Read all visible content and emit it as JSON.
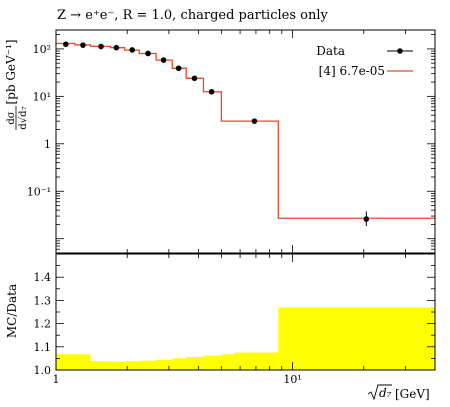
{
  "title": "Z → e⁺e⁻, R = 1.0, charged particles only",
  "chart_data": [
    {
      "type": "line",
      "panel": "main",
      "xscale": "log",
      "yscale": "log",
      "xlim": [
        1,
        40
      ],
      "ylim": [
        0.005,
        250
      ],
      "ylabel_num": "dσ",
      "ylabel_den": "d√d₇",
      "ylabel_unit": "[pb GeV⁻¹]",
      "y_ticks": [
        {
          "value": 100,
          "label": "10²"
        },
        {
          "value": 10,
          "label": "10¹"
        },
        {
          "value": 1,
          "label": "1"
        },
        {
          "value": 0.1,
          "label": "10⁻¹"
        }
      ],
      "legend": {
        "position": "top-right",
        "entries": [
          "Data",
          "[4] 6.7e-05"
        ]
      },
      "series": [
        {
          "name": "Data",
          "style": "points",
          "color": "#000000",
          "x": [
            1.1,
            1.3,
            1.55,
            1.8,
            2.1,
            2.45,
            2.85,
            3.3,
            3.85,
            4.55,
            6.9,
            20.5
          ],
          "y": [
            125,
            120,
            112,
            106,
            95,
            80,
            58,
            39,
            24,
            12.5,
            3.0,
            0.026
          ],
          "yerr_low": [
            0,
            0,
            0,
            0,
            0,
            0,
            0,
            0,
            0,
            0,
            0,
            0.0075
          ],
          "yerr_high": [
            0,
            0,
            0,
            0,
            0,
            0,
            0,
            0,
            0,
            0,
            0,
            0.0115
          ]
        },
        {
          "name": "[4] 6.7e-05",
          "style": "step",
          "color": "#e8492b",
          "bin_edges": [
            1.0,
            1.2,
            1.4,
            1.7,
            1.95,
            2.25,
            2.65,
            3.1,
            3.55,
            4.2,
            5.0,
            5.7,
            8.7,
            40
          ],
          "values": [
            130,
            121,
            113,
            106,
            94,
            80,
            58,
            39,
            24,
            12.5,
            3.0,
            3.0,
            0.027
          ]
        }
      ]
    },
    {
      "type": "area",
      "panel": "ratio",
      "xscale": "log",
      "xlim": [
        1,
        40
      ],
      "ylim": [
        1.0,
        1.5
      ],
      "ylabel": "MC/Data",
      "xlabel_sqrt": "d₇",
      "xlabel_unit": "[GeV]",
      "x_ticks": [
        {
          "value": 1,
          "label": "1"
        },
        {
          "value": 10,
          "label": "10¹"
        }
      ],
      "y_ticks": [
        {
          "value": 1.0,
          "label": "1.0"
        },
        {
          "value": 1.1,
          "label": "1.1"
        },
        {
          "value": 1.2,
          "label": "1.2"
        },
        {
          "value": 1.3,
          "label": "1.3"
        },
        {
          "value": 1.4,
          "label": "1.4"
        }
      ],
      "band_color": "#ffff00",
      "bin_edges": [
        1.0,
        1.4,
        1.7,
        1.95,
        2.25,
        2.65,
        3.1,
        3.55,
        4.2,
        5.0,
        5.7,
        8.7,
        40
      ],
      "band_high": [
        1.068,
        1.038,
        1.036,
        1.038,
        1.04,
        1.044,
        1.05,
        1.056,
        1.062,
        1.068,
        1.075,
        1.27
      ]
    }
  ]
}
